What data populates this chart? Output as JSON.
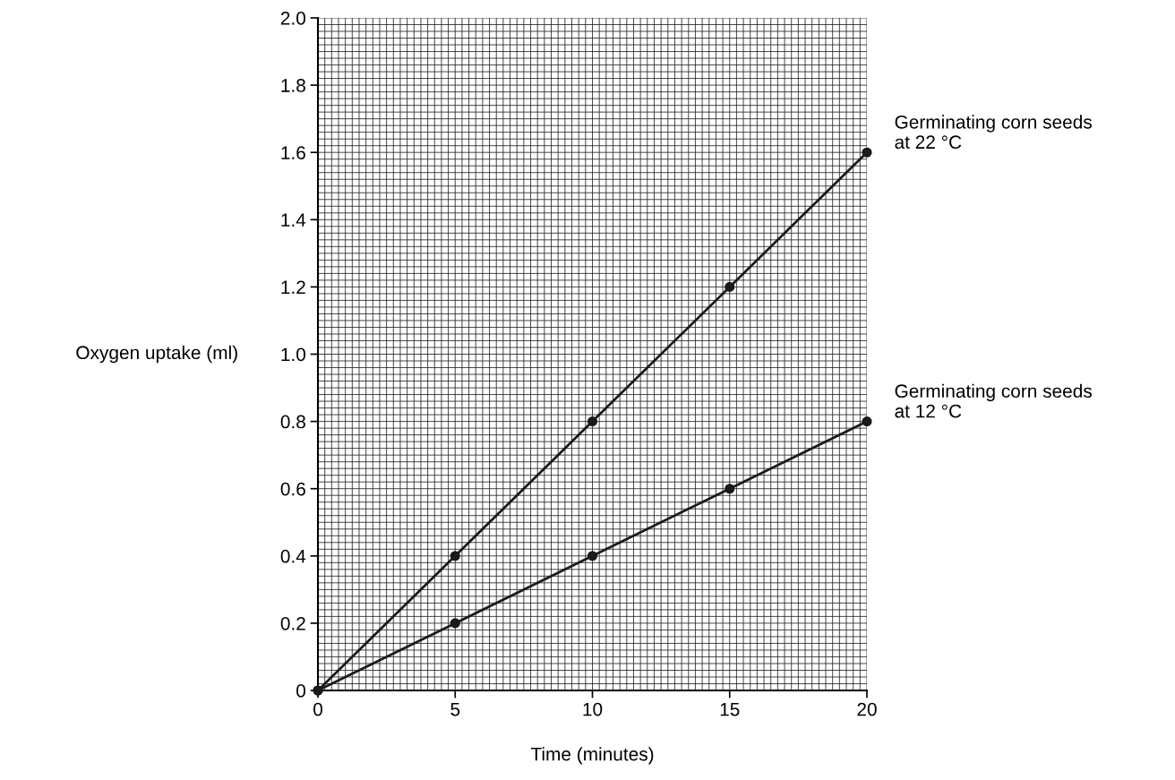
{
  "chart_data": {
    "type": "line",
    "xlabel": "Time (minutes)",
    "ylabel": "Oxygen uptake (ml)",
    "x": [
      0,
      5,
      10,
      15,
      20
    ],
    "series": [
      {
        "name": "Germinating corn seeds\nat 22 °C",
        "color": "#1a1a1a",
        "values": [
          0,
          0.4,
          0.8,
          1.2,
          1.6
        ]
      },
      {
        "name": "Germinating corn seeds\nat 12 °C",
        "color": "#1a1a1a",
        "values": [
          0,
          0.2,
          0.4,
          0.6,
          0.8
        ]
      }
    ],
    "xlim": [
      0,
      20
    ],
    "xticks": [
      0,
      5,
      10,
      15,
      20
    ],
    "ylim": [
      0,
      2
    ],
    "yticks": [
      0,
      0.2,
      0.4,
      0.6,
      0.8,
      {
        "value": 1,
        "label": "1.0"
      },
      1.2,
      1.4,
      1.6,
      1.8,
      {
        "value": 2,
        "label": "2.0"
      }
    ],
    "grid": true,
    "marker": "circle",
    "line_style": "solid",
    "legend": false
  }
}
